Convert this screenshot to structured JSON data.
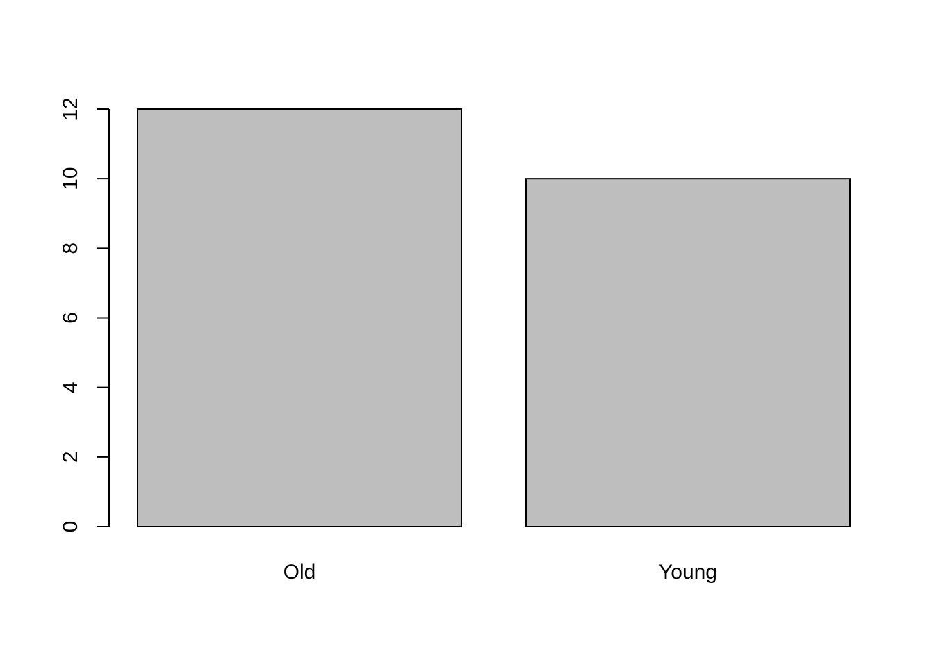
{
  "chart_data": {
    "type": "bar",
    "title": "",
    "xlabel": "",
    "ylabel": "",
    "categories": [
      "Old",
      "Young"
    ],
    "values": [
      12,
      10
    ],
    "ylim": [
      0,
      12
    ],
    "yticks": [
      0,
      2,
      4,
      6,
      8,
      10,
      12
    ],
    "ytick_labels": [
      "0",
      "2",
      "4",
      "6",
      "8",
      "10",
      "12"
    ],
    "grid": false,
    "colors": {
      "bar_fill": "#bebebe",
      "bar_stroke": "#000000",
      "axis": "#000000",
      "background": "#ffffff"
    }
  }
}
